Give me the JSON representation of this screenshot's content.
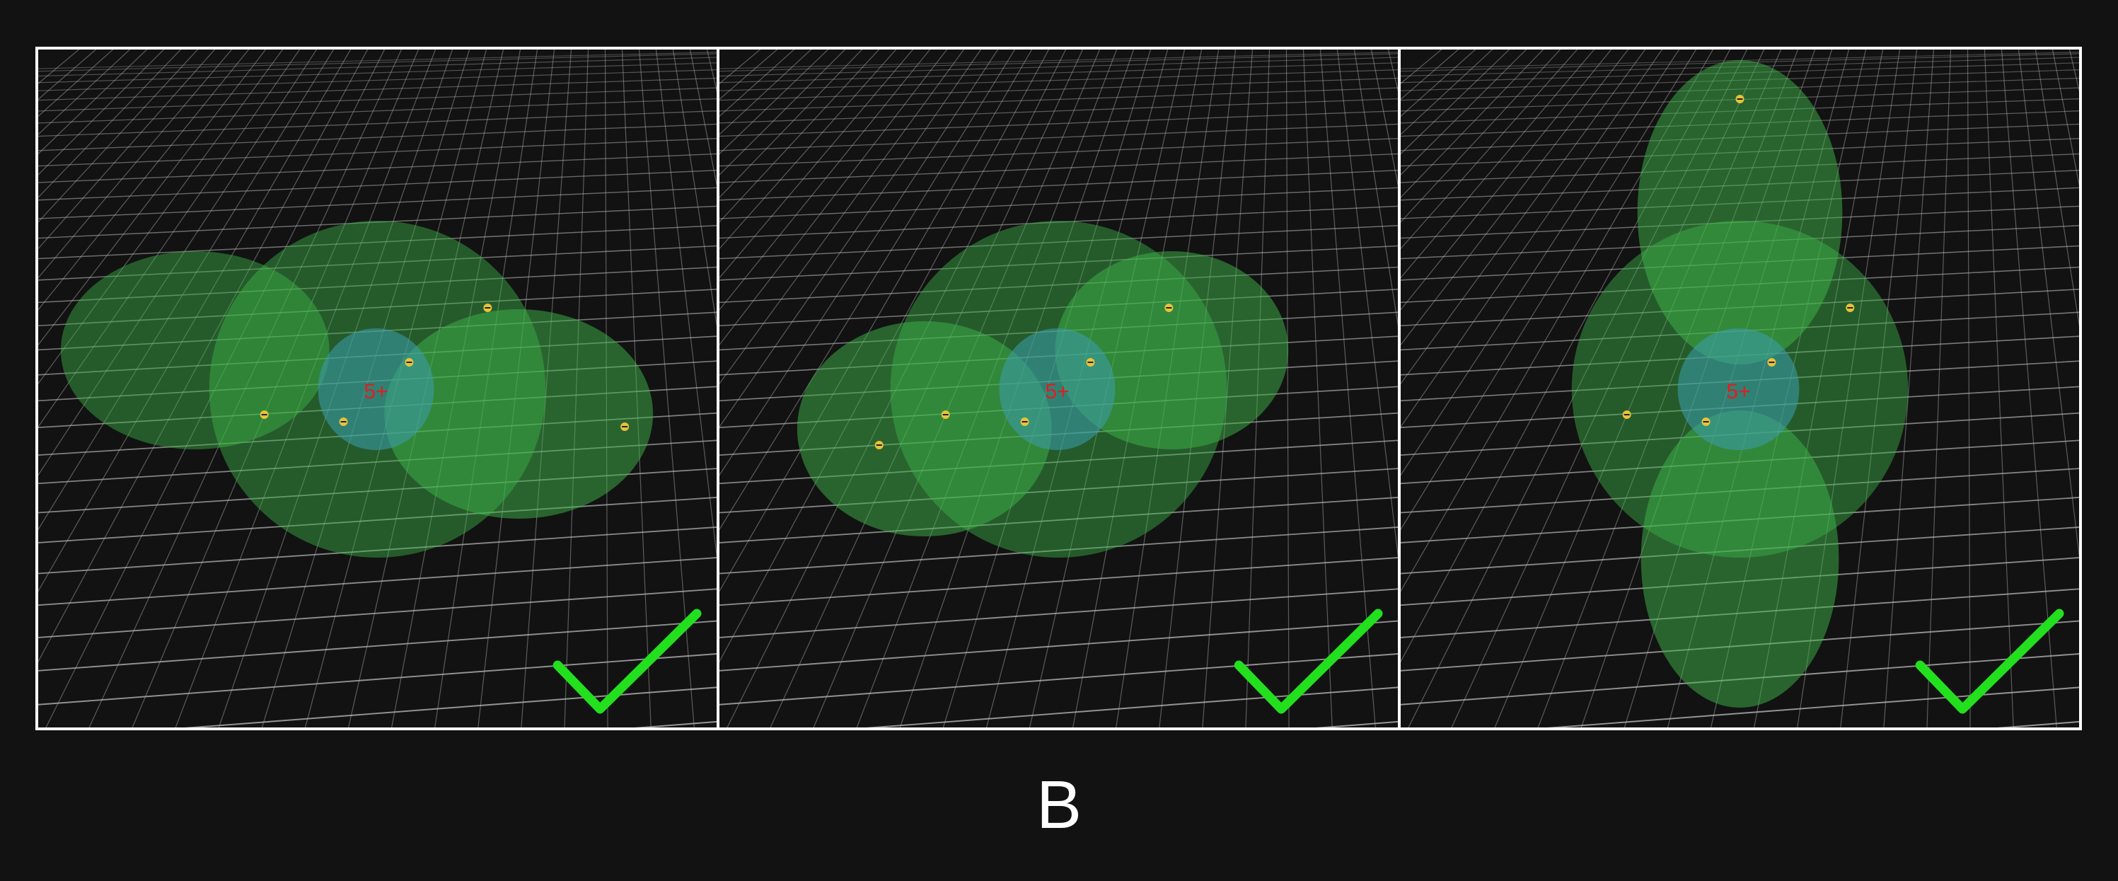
{
  "caption": "B",
  "colors": {
    "background": "#121212",
    "grid": "#b8b8b8",
    "lobe": "#3fb54a",
    "core": "#3c9fb0",
    "charge_label": "#e01e1e",
    "electron": "#e8c23a",
    "check": "#22e01e"
  },
  "panels": [
    {
      "id": "panel-1",
      "core_label": "5+",
      "check_icon": "checkmark-icon",
      "electron_label": "−",
      "lobes": 3,
      "electrons": 5
    },
    {
      "id": "panel-2",
      "core_label": "5+",
      "check_icon": "checkmark-icon",
      "electron_label": "−",
      "lobes": 3,
      "electrons": 5
    },
    {
      "id": "panel-3",
      "core_label": "5+",
      "check_icon": "checkmark-icon",
      "electron_label": "−",
      "lobes": 3,
      "electrons": 5
    }
  ]
}
